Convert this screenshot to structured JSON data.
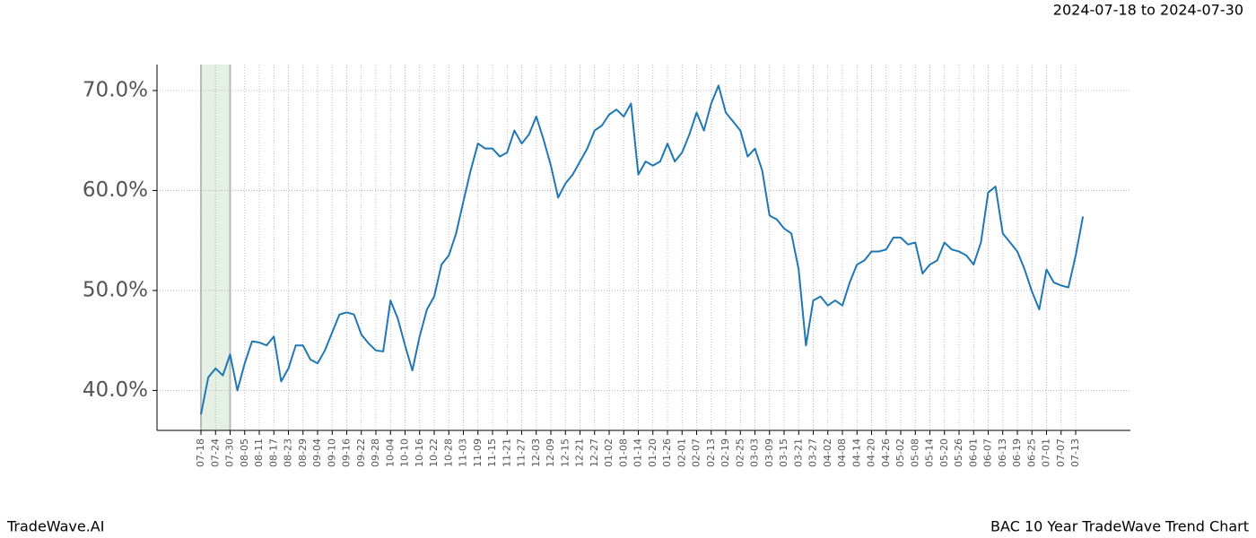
{
  "chart_data": {
    "type": "line",
    "subtitle": "2024-07-18 to 2024-07-30",
    "footer_left": "TradeWave.AI",
    "footer_right": "BAC 10 Year TradeWave Trend Chart",
    "categories": [
      "07-18",
      null,
      "07-24",
      null,
      "07-30",
      null,
      "08-05",
      null,
      "08-11",
      null,
      "08-17",
      null,
      "08-23",
      null,
      "08-29",
      null,
      "09-04",
      null,
      "09-10",
      null,
      "09-16",
      null,
      "09-22",
      null,
      "09-28",
      null,
      "10-04",
      null,
      "10-10",
      null,
      "10-16",
      null,
      "10-22",
      null,
      "10-28",
      null,
      "11-03",
      null,
      "11-09",
      null,
      "11-15",
      null,
      "11-21",
      null,
      "11-27",
      null,
      "12-03",
      null,
      "12-09",
      null,
      "12-15",
      null,
      "12-21",
      null,
      "12-27",
      null,
      "01-02",
      null,
      "01-08",
      null,
      "01-14",
      null,
      "01-20",
      null,
      "01-26",
      null,
      "02-01",
      null,
      "02-07",
      null,
      "02-13",
      null,
      "02-19",
      null,
      "02-25",
      null,
      "03-03",
      null,
      "03-09",
      null,
      "03-15",
      null,
      "03-21",
      null,
      "03-27",
      null,
      "04-02",
      null,
      "04-08",
      null,
      "04-14",
      null,
      "04-20",
      null,
      "04-26",
      null,
      "05-02",
      null,
      "05-08",
      null,
      "05-14",
      null,
      "05-20",
      null,
      "05-26",
      null,
      "06-01",
      null,
      "06-07",
      null,
      "06-13",
      null,
      "06-19",
      null,
      "06-25",
      null,
      "07-01",
      null,
      "07-07",
      null,
      "07-13",
      null
    ],
    "values": [
      37.6,
      41.3,
      42.2,
      41.5,
      43.6,
      40.0,
      42.7,
      44.9,
      44.8,
      44.5,
      45.4,
      40.9,
      42.2,
      44.5,
      44.5,
      43.1,
      42.7,
      44.0,
      45.8,
      47.6,
      47.8,
      47.6,
      45.6,
      44.7,
      44.0,
      43.9,
      49.0,
      47.2,
      44.5,
      42.0,
      45.4,
      48.1,
      49.4,
      52.6,
      53.5,
      55.7,
      58.9,
      62.0,
      64.7,
      64.2,
      64.2,
      63.4,
      63.8,
      66.0,
      64.7,
      65.6,
      67.4,
      65.1,
      62.5,
      59.3,
      60.7,
      61.6,
      62.9,
      64.2,
      66.0,
      66.5,
      67.6,
      68.1,
      67.4,
      68.7,
      61.6,
      62.9,
      62.5,
      62.9,
      64.7,
      62.9,
      63.8,
      65.6,
      67.8,
      66.0,
      68.7,
      70.5,
      67.8,
      66.9,
      66.0,
      63.4,
      64.2,
      62.0,
      57.5,
      57.1,
      56.2,
      55.7,
      52.1,
      44.5,
      49.0,
      49.4,
      48.5,
      49.0,
      48.5,
      50.8,
      52.6,
      53.0,
      53.9,
      53.9,
      54.1,
      55.3,
      55.3,
      54.6,
      54.8,
      51.7,
      52.6,
      53.0,
      54.8,
      54.1,
      53.9,
      53.5,
      52.6,
      54.8,
      59.8,
      60.4,
      55.7,
      54.8,
      53.9,
      52.1,
      49.9,
      48.1,
      52.1,
      50.8,
      50.5,
      50.3,
      53.5,
      57.4
    ],
    "color": "#1f77b4",
    "highlight": {
      "from": "07-18",
      "to": "07-30",
      "color": "#e3f0e3"
    },
    "ylim": [
      36.0,
      72.6
    ],
    "yticks": [
      {
        "value": 40,
        "label": "40.0%"
      },
      {
        "value": 50,
        "label": "50.0%"
      },
      {
        "value": 60,
        "label": "60.0%"
      },
      {
        "value": 70,
        "label": "70.0%"
      }
    ],
    "grid": true
  }
}
